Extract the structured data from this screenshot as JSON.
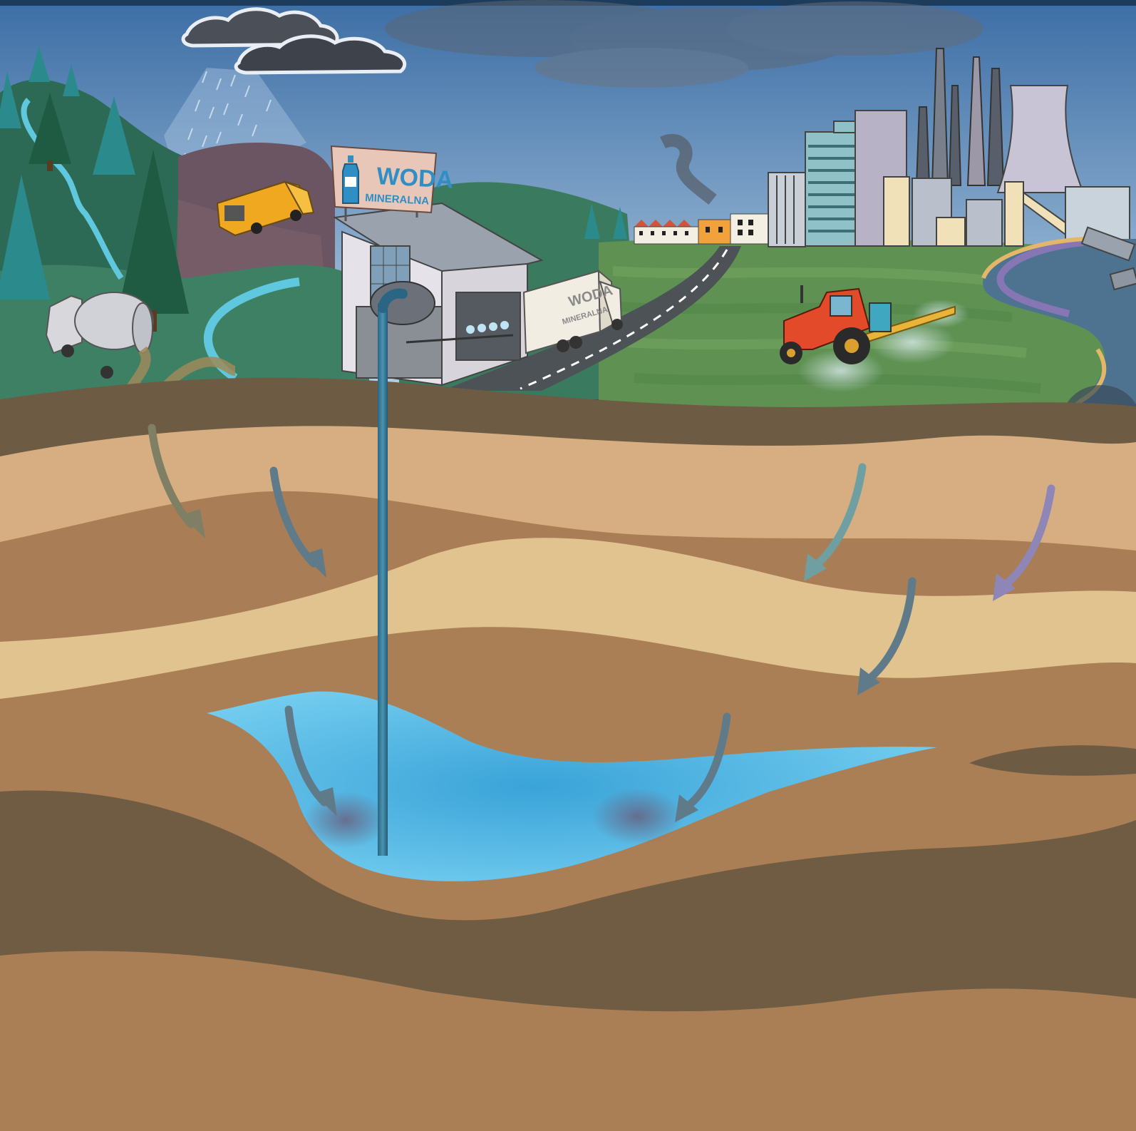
{
  "illustration": {
    "sign": {
      "title": "WODA",
      "subtitle": "MINERALNA"
    },
    "truck_label": {
      "line1": "WODA",
      "line2": "MINERALNA"
    },
    "colors": {
      "top_bar": "#1d3c5c",
      "sky_top": "#3d6fa8",
      "sky_bottom": "#a9c6df",
      "grass": "#3e8064",
      "field": "#6a9a56",
      "soil_dark": "#6e5b43",
      "soil_mid": "#a97d55",
      "soil_light": "#d8b98b",
      "soil_pale": "#e3c594",
      "aquifer": "#4fb8e6",
      "pipe": "#2d6f8a",
      "arrow_pollutant": "#5f7b8a",
      "arrow_brown": "#7f7f66",
      "arrow_teal": "#6f9fa1",
      "arrow_purple": "#8e86b6"
    },
    "icons": [
      "rain-cloud-icon",
      "tree-icon",
      "garbage-truck-icon",
      "tanker-truck-icon",
      "bottling-plant-icon",
      "delivery-truck-icon",
      "tractor-sprayer-icon",
      "factory-icon",
      "smokestack-icon",
      "pipe-icon",
      "water-bottle-icon"
    ]
  }
}
